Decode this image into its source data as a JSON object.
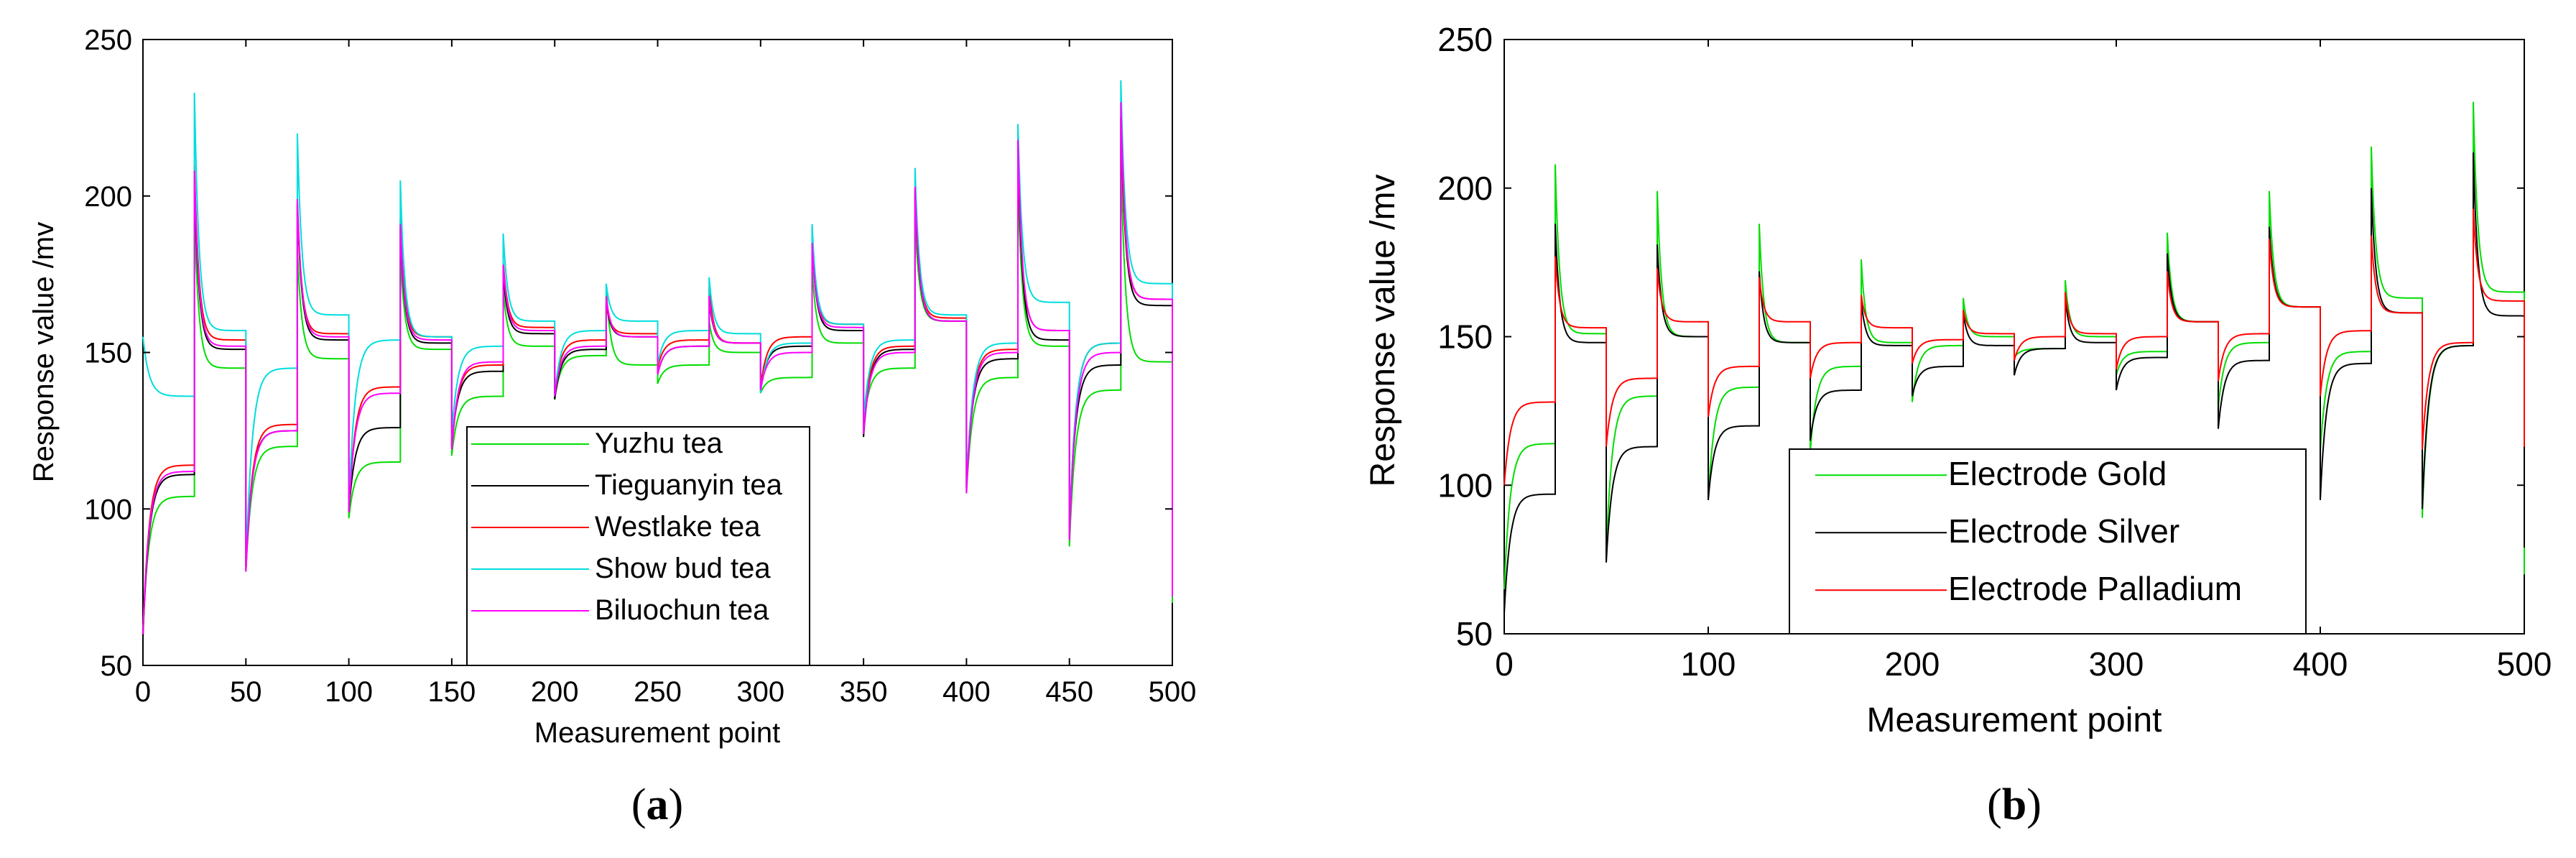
{
  "chart_data": [
    {
      "panel": "a",
      "type": "line",
      "caption_label": "a",
      "xlabel": "Measurement point",
      "ylabel": "Response value /mv",
      "xlim": [
        0,
        500
      ],
      "ylim": [
        50,
        250
      ],
      "xticks": [
        0,
        50,
        100,
        150,
        200,
        250,
        300,
        350,
        400,
        450,
        500
      ],
      "yticks": [
        50,
        100,
        150,
        200,
        250
      ],
      "legend_location": "bottom-center",
      "segment_length": 25,
      "series": [
        {
          "name": "Yuzhu tea",
          "color": "#00dd00",
          "segments": [
            [
              62,
              104,
              194,
              145
            ],
            [
              80,
              120,
              183,
              148
            ],
            [
              97,
              115,
              182,
              151
            ],
            [
              117,
              136,
              170,
              152
            ],
            [
              135,
              149,
              171,
              146
            ],
            [
              140,
              146,
              160,
              150
            ],
            [
              137,
              142,
              177,
              153
            ],
            [
              127,
              145,
              193,
              160
            ],
            [
              105,
              142,
              204,
              152
            ],
            [
              88,
              138,
              214,
              147
            ],
            [
              70,
              145,
              null,
              null
            ]
          ]
        },
        {
          "name": "Tieguanyin tea",
          "color": "#000000",
          "segments": [
            [
              59,
              111,
              205,
              151
            ],
            [
              82,
              125,
              197,
              154
            ],
            [
              99,
              126,
              190,
              153
            ],
            [
              120,
              144,
              175,
              156
            ],
            [
              135,
              151,
              166,
              155
            ],
            [
              143,
              152,
              167,
              153
            ],
            [
              138,
              152,
              185,
              157
            ],
            [
              123,
              151,
              201,
              160
            ],
            [
              107,
              148,
              214,
              154
            ],
            [
              93,
              146,
              225,
              165
            ],
            [
              72,
              147,
              null,
              null
            ]
          ]
        },
        {
          "name": "Westlake tea",
          "color": "#ff0000",
          "segments": [
            [
              60,
              114,
              210,
              154
            ],
            [
              80,
              127,
              198,
              156
            ],
            [
              99,
              139,
              193,
              155
            ],
            [
              119,
              146,
              179,
              158
            ],
            [
              137,
              154,
              166,
              156
            ],
            [
              145,
              154,
              171,
              153
            ],
            [
              139,
              155,
              186,
              159
            ],
            [
              126,
              152,
              202,
              161
            ],
            [
              107,
              151,
              216,
              157
            ],
            [
              91,
              153,
              225,
              167
            ],
            [
              73,
              148,
              null,
              null
            ]
          ]
        },
        {
          "name": "Show bud tea",
          "color": "#00dddd",
          "segments": [
            [
              155,
              136,
              233,
              157
            ],
            [
              80,
              145,
              220,
              162
            ],
            [
              100,
              154,
              205,
              155
            ],
            [
              124,
              152,
              188,
              160
            ],
            [
              136,
              157,
              172,
              160
            ],
            [
              146,
              157,
              174,
              156
            ],
            [
              137,
              153,
              191,
              159
            ],
            [
              128,
              154,
              209,
              162
            ],
            [
              107,
              153,
              223,
              166
            ],
            [
              92,
              153,
              237,
              172
            ],
            [
              74,
              152,
              null,
              null
            ]
          ]
        },
        {
          "name": "Biluochun tea",
          "color": "#ff00ff",
          "segments": [
            [
              60,
              112,
              208,
              152
            ],
            [
              80,
              125,
              199,
              155
            ],
            [
              99,
              137,
              191,
              154
            ],
            [
              119,
              147,
              178,
              157
            ],
            [
              136,
              152,
              168,
              155
            ],
            [
              143,
              152,
              168,
              153
            ],
            [
              138,
              150,
              185,
              158
            ],
            [
              124,
              150,
              203,
              160
            ],
            [
              105,
              150,
              218,
              157
            ],
            [
              90,
              150,
              230,
              167
            ],
            [
              72,
              148,
              null,
              null
            ]
          ]
        }
      ]
    },
    {
      "panel": "b",
      "type": "line",
      "caption_label": "b",
      "xlabel": "Measurement point",
      "ylabel": "Response value /mv",
      "xlim": [
        0,
        500
      ],
      "ylim": [
        50,
        250
      ],
      "xticks": [
        0,
        100,
        200,
        300,
        400,
        500
      ],
      "yticks": [
        50,
        100,
        150,
        200,
        250
      ],
      "legend_location": "bottom-center",
      "segment_length": 25,
      "series": [
        {
          "name": "Electrode Gold",
          "color": "#00dd00",
          "segments": [
            [
              65,
              114,
              208,
              151
            ],
            [
              77,
              130,
              199,
              150
            ],
            [
              95,
              133,
              188,
              148
            ],
            [
              111,
              140,
              176,
              148
            ],
            [
              128,
              147,
              163,
              150
            ],
            [
              143,
              146,
              169,
              150
            ],
            [
              137,
              145,
              185,
              155
            ],
            [
              126,
              148,
              199,
              160
            ],
            [
              111,
              145,
              214,
              163
            ],
            [
              89,
              147,
              229,
              165
            ],
            [
              70,
              145,
              null,
              null
            ]
          ]
        },
        {
          "name": "Electrode Silver",
          "color": "#000000",
          "segments": [
            [
              57,
              97,
              188,
              148
            ],
            [
              74,
              113,
              181,
              150
            ],
            [
              95,
              120,
              172,
              148
            ],
            [
              115,
              132,
              162,
              147
            ],
            [
              130,
              140,
              158,
              147
            ],
            [
              137,
              146,
              163,
              148
            ],
            [
              132,
              143,
              178,
              155
            ],
            [
              119,
              142,
              187,
              160
            ],
            [
              95,
              141,
              200,
              158
            ],
            [
              92,
              147,
              212,
              157
            ],
            [
              79,
              139,
              null,
              null
            ]
          ]
        },
        {
          "name": "Electrode Palladium",
          "color": "#ff0000",
          "segments": [
            [
              100,
              128,
              177,
              153
            ],
            [
              113,
              136,
              173,
              155
            ],
            [
              123,
              140,
              170,
              155
            ],
            [
              136,
              148,
              164,
              153
            ],
            [
              141,
              149,
              159,
              151
            ],
            [
              142,
              150,
              165,
              151
            ],
            [
              139,
              150,
              172,
              155
            ],
            [
              135,
              151,
              183,
              160
            ],
            [
              130,
              152,
              184,
              158
            ],
            [
              112,
              148,
              193,
              162
            ],
            [
              113,
              147,
              null,
              null
            ]
          ]
        }
      ]
    }
  ]
}
